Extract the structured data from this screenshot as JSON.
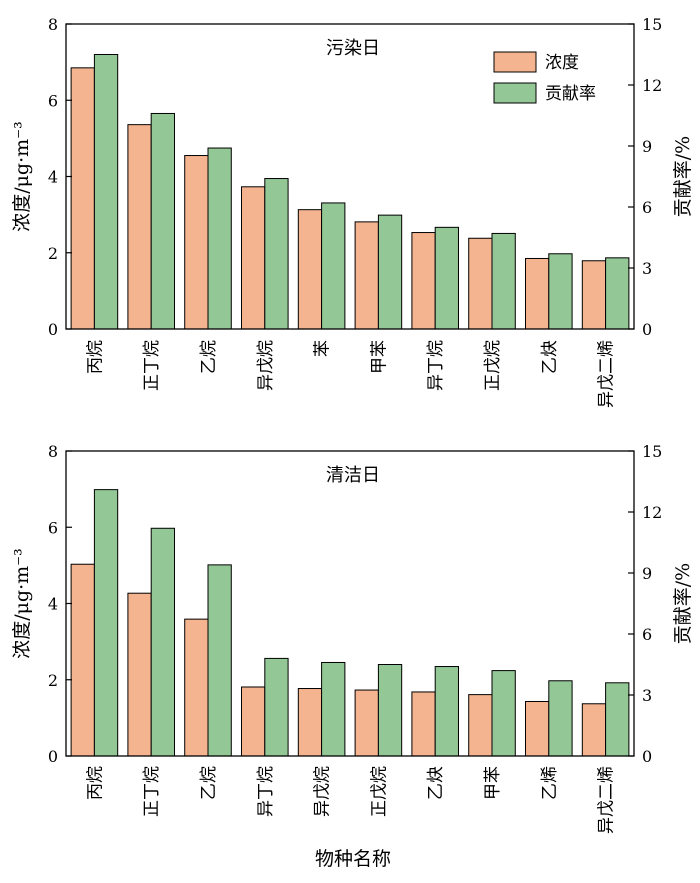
{
  "figure": {
    "xlabel": "物种名称",
    "legend": {
      "placement": "top-right",
      "items": [
        {
          "label": "浓度",
          "color": "#f4b48f"
        },
        {
          "label": "贡献率",
          "color": "#93c796"
        }
      ]
    }
  },
  "chart_data": [
    {
      "type": "bar",
      "title": "污染日",
      "ylabel": "浓度/μg·m⁻³",
      "y2label": "贡献率/%",
      "ylim": [
        0,
        8
      ],
      "yticks": [
        0,
        2,
        4,
        6,
        8
      ],
      "y2lim": [
        0,
        15
      ],
      "y2ticks": [
        0,
        3,
        6,
        9,
        12,
        15
      ],
      "categories": [
        "丙烷",
        "正丁烷",
        "乙烷",
        "异戊烷",
        "苯",
        "甲苯",
        "异丁烷",
        "正戊烷",
        "乙炔",
        "异戊二烯"
      ],
      "series": [
        {
          "name": "浓度",
          "axis": "left",
          "color": "#f4b48f",
          "values": [
            6.85,
            5.36,
            4.55,
            3.73,
            3.13,
            2.81,
            2.53,
            2.38,
            1.85,
            1.79
          ]
        },
        {
          "name": "贡献率",
          "axis": "right",
          "color": "#93c796",
          "values": [
            13.5,
            10.6,
            8.9,
            7.4,
            6.2,
            5.6,
            5.0,
            4.7,
            3.7,
            3.5
          ]
        }
      ]
    },
    {
      "type": "bar",
      "title": "清洁日",
      "ylabel": "浓度/μg·m⁻³",
      "y2label": "贡献率/%",
      "ylim": [
        0,
        8
      ],
      "yticks": [
        0,
        2,
        4,
        6,
        8
      ],
      "y2lim": [
        0,
        15
      ],
      "y2ticks": [
        0,
        3,
        6,
        9,
        12,
        15
      ],
      "categories": [
        "丙烷",
        "正丁烷",
        "乙烷",
        "异丁烷",
        "异戊烷",
        "正戊烷",
        "乙炔",
        "甲苯",
        "乙烯",
        "异戊二烯"
      ],
      "series": [
        {
          "name": "浓度",
          "axis": "left",
          "color": "#f4b48f",
          "values": [
            5.03,
            4.27,
            3.59,
            1.81,
            1.77,
            1.73,
            1.68,
            1.61,
            1.43,
            1.37
          ]
        },
        {
          "name": "贡献率",
          "axis": "right",
          "color": "#93c796",
          "values": [
            13.1,
            11.2,
            9.4,
            4.8,
            4.6,
            4.5,
            4.4,
            4.2,
            3.7,
            3.6
          ]
        }
      ]
    }
  ]
}
